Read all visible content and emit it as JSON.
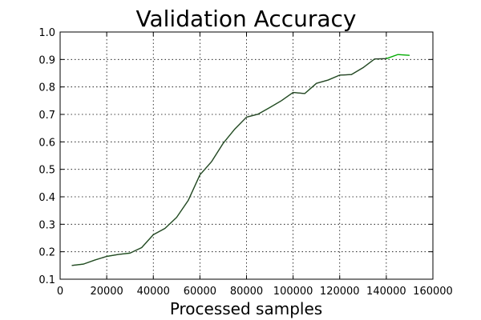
{
  "chart_data": {
    "type": "line",
    "title": "Validation Accuracy",
    "xlabel": "Processed samples",
    "ylabel": "",
    "xlim": [
      0,
      160000
    ],
    "ylim": [
      0.1,
      1.0
    ],
    "xticks": [
      0,
      20000,
      40000,
      60000,
      80000,
      100000,
      120000,
      140000,
      160000
    ],
    "xtick_labels": [
      "0",
      "20000",
      "40000",
      "60000",
      "80000",
      "100000",
      "120000",
      "140000",
      "160000"
    ],
    "yticks": [
      0.1,
      0.2,
      0.3,
      0.4,
      0.5,
      0.6,
      0.7,
      0.8,
      0.9,
      1.0
    ],
    "ytick_labels": [
      "0.1",
      "0.2",
      "0.3",
      "0.4",
      "0.5",
      "0.6",
      "0.7",
      "0.8",
      "0.9",
      "1.0"
    ],
    "grid": true,
    "series": [
      {
        "color": "#00aa00",
        "x": [
          5000,
          10000,
          15000,
          20000,
          25000,
          30000,
          35000,
          40000,
          45000,
          50000,
          55000,
          60000,
          65000,
          70000,
          75000,
          80000,
          85000,
          90000,
          95000,
          100000,
          105000,
          110000,
          115000,
          120000,
          125000,
          130000,
          135000,
          140000,
          145000,
          150000
        ],
        "values": [
          0.15,
          0.155,
          0.17,
          0.183,
          0.19,
          0.195,
          0.215,
          0.262,
          0.285,
          0.325,
          0.387,
          0.48,
          0.528,
          0.595,
          0.647,
          0.69,
          0.701,
          0.725,
          0.75,
          0.78,
          0.776,
          0.813,
          0.825,
          0.843,
          0.845,
          0.87,
          0.902,
          0.903,
          0.918,
          0.915
        ]
      },
      {
        "color": "#333333",
        "x": [
          5000,
          10000,
          15000,
          20000,
          25000,
          30000,
          35000,
          40000,
          45000,
          50000,
          55000,
          60000,
          65000,
          70000,
          75000,
          80000,
          85000,
          90000,
          95000,
          100000,
          105000,
          110000,
          115000,
          120000,
          125000,
          130000,
          135000,
          140000
        ],
        "values": [
          0.15,
          0.155,
          0.17,
          0.183,
          0.19,
          0.195,
          0.215,
          0.262,
          0.285,
          0.325,
          0.387,
          0.48,
          0.528,
          0.595,
          0.647,
          0.69,
          0.701,
          0.725,
          0.75,
          0.78,
          0.776,
          0.813,
          0.825,
          0.843,
          0.845,
          0.87,
          0.902,
          0.903
        ]
      }
    ]
  }
}
